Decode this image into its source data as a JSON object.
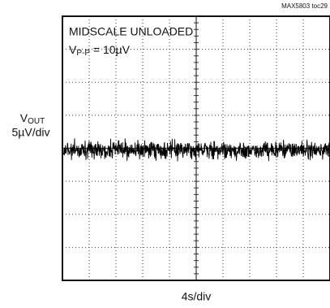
{
  "chart_data": {
    "type": "scope",
    "figure_id": "MAX5803 toc29",
    "annotation": "MIDSCALE UNLOADED",
    "measure": {
      "symbol": "V",
      "subscript": "P-P",
      "rest": " = 10µV"
    },
    "y_label": {
      "symbol": "V",
      "subscript": "OUT"
    },
    "y_scale": "5µV/div",
    "x_label": "4s/div",
    "grid": true
  }
}
